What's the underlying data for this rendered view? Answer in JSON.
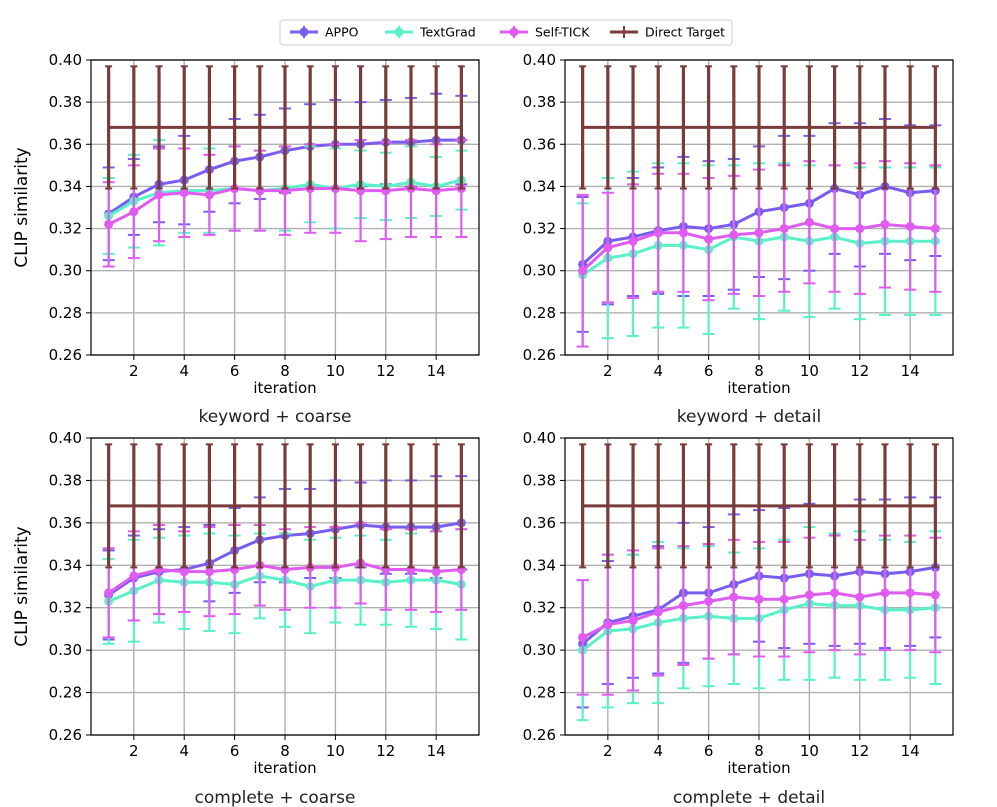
{
  "legend": [
    {
      "name": "APPO",
      "color": "#7b5cf0"
    },
    {
      "name": "TextGrad",
      "color": "#5af0c8"
    },
    {
      "name": "Self-TICK",
      "color": "#e05cf0"
    },
    {
      "name": "Direct Target",
      "color": "#7a3b3b"
    }
  ],
  "chart_data": [
    {
      "type": "line",
      "title": "keyword + coarse",
      "xlabel": "iteration",
      "ylabel": "CLIP similarity",
      "xlim": [
        0.3,
        15.7
      ],
      "ylim": [
        0.26,
        0.4
      ],
      "xticks": [
        2,
        4,
        6,
        8,
        10,
        12,
        14
      ],
      "yticks": [
        "0.26",
        "0.28",
        "0.30",
        "0.32",
        "0.34",
        "0.36",
        "0.38",
        "0.40"
      ],
      "x": [
        1,
        2,
        3,
        4,
        5,
        6,
        7,
        8,
        9,
        10,
        11,
        12,
        13,
        14,
        15
      ],
      "series": [
        {
          "name": "APPO",
          "color": "#7b5cf0",
          "values": [
            0.327,
            0.335,
            0.341,
            0.343,
            0.348,
            0.352,
            0.354,
            0.357,
            0.359,
            0.36,
            0.36,
            0.361,
            0.361,
            0.362,
            0.362
          ],
          "err": [
            0.022,
            0.018,
            0.018,
            0.021,
            0.02,
            0.02,
            0.02,
            0.02,
            0.02,
            0.021,
            0.02,
            0.02,
            0.021,
            0.022,
            0.021
          ]
        },
        {
          "name": "TextGrad",
          "color": "#5af0c8",
          "values": [
            0.326,
            0.333,
            0.337,
            0.338,
            0.338,
            0.339,
            0.338,
            0.339,
            0.341,
            0.339,
            0.341,
            0.34,
            0.342,
            0.34,
            0.343
          ],
          "err": [
            0.018,
            0.022,
            0.025,
            0.02,
            0.02,
            0.02,
            0.019,
            0.02,
            0.018,
            0.019,
            0.016,
            0.016,
            0.017,
            0.014,
            0.014
          ]
        },
        {
          "name": "Self-TICK",
          "color": "#e05cf0",
          "values": [
            0.322,
            0.328,
            0.336,
            0.337,
            0.336,
            0.339,
            0.338,
            0.338,
            0.339,
            0.339,
            0.338,
            0.338,
            0.339,
            0.338,
            0.339
          ],
          "err": [
            0.02,
            0.022,
            0.022,
            0.021,
            0.019,
            0.02,
            0.019,
            0.021,
            0.021,
            0.021,
            0.024,
            0.023,
            0.023,
            0.022,
            0.023
          ]
        },
        {
          "name": "Direct Target",
          "color": "#7a3b3b",
          "values": [
            0.368,
            0.368,
            0.368,
            0.368,
            0.368,
            0.368,
            0.368,
            0.368,
            0.368,
            0.368,
            0.368,
            0.368,
            0.368,
            0.368,
            0.368
          ],
          "err": [
            0.029,
            0.029,
            0.029,
            0.029,
            0.029,
            0.029,
            0.029,
            0.029,
            0.029,
            0.029,
            0.029,
            0.029,
            0.029,
            0.029,
            0.029
          ]
        }
      ]
    },
    {
      "type": "line",
      "title": "keyword + detail",
      "xlabel": "iteration",
      "ylabel": "",
      "xlim": [
        0.3,
        15.7
      ],
      "ylim": [
        0.26,
        0.4
      ],
      "xticks": [
        2,
        4,
        6,
        8,
        10,
        12,
        14
      ],
      "yticks": [
        "0.26",
        "0.28",
        "0.30",
        "0.32",
        "0.34",
        "0.36",
        "0.38",
        "0.40"
      ],
      "x": [
        1,
        2,
        3,
        4,
        5,
        6,
        7,
        8,
        9,
        10,
        11,
        12,
        13,
        14,
        15
      ],
      "series": [
        {
          "name": "APPO",
          "color": "#7b5cf0",
          "values": [
            0.303,
            0.314,
            0.316,
            0.319,
            0.321,
            0.32,
            0.322,
            0.328,
            0.33,
            0.332,
            0.339,
            0.336,
            0.34,
            0.337,
            0.338
          ],
          "err": [
            0.032,
            0.03,
            0.028,
            0.03,
            0.033,
            0.032,
            0.031,
            0.031,
            0.034,
            0.032,
            0.031,
            0.034,
            0.032,
            0.032,
            0.031
          ]
        },
        {
          "name": "TextGrad",
          "color": "#5af0c8",
          "values": [
            0.298,
            0.306,
            0.308,
            0.312,
            0.312,
            0.31,
            0.316,
            0.314,
            0.316,
            0.314,
            0.316,
            0.313,
            0.314,
            0.314,
            0.314
          ],
          "err": [
            0.034,
            0.038,
            0.039,
            0.039,
            0.039,
            0.04,
            0.034,
            0.037,
            0.035,
            0.036,
            0.034,
            0.036,
            0.035,
            0.035,
            0.035
          ]
        },
        {
          "name": "Self-TICK",
          "color": "#e05cf0",
          "values": [
            0.3,
            0.311,
            0.314,
            0.318,
            0.318,
            0.315,
            0.317,
            0.318,
            0.32,
            0.323,
            0.32,
            0.32,
            0.322,
            0.321,
            0.32
          ],
          "err": [
            0.036,
            0.026,
            0.027,
            0.028,
            0.028,
            0.029,
            0.028,
            0.03,
            0.03,
            0.029,
            0.03,
            0.031,
            0.03,
            0.03,
            0.03
          ]
        },
        {
          "name": "Direct Target",
          "color": "#7a3b3b",
          "values": [
            0.368,
            0.368,
            0.368,
            0.368,
            0.368,
            0.368,
            0.368,
            0.368,
            0.368,
            0.368,
            0.368,
            0.368,
            0.368,
            0.368,
            0.368
          ],
          "err": [
            0.029,
            0.029,
            0.029,
            0.029,
            0.029,
            0.029,
            0.029,
            0.029,
            0.029,
            0.029,
            0.029,
            0.029,
            0.029,
            0.029,
            0.029
          ]
        }
      ]
    },
    {
      "type": "line",
      "title": "complete + coarse",
      "xlabel": "iteration",
      "ylabel": "CLIP similarity",
      "xlim": [
        0.3,
        15.7
      ],
      "ylim": [
        0.26,
        0.4
      ],
      "xticks": [
        2,
        4,
        6,
        8,
        10,
        12,
        14
      ],
      "yticks": [
        "0.26",
        "0.28",
        "0.30",
        "0.32",
        "0.34",
        "0.36",
        "0.38",
        "0.40"
      ],
      "x": [
        1,
        2,
        3,
        4,
        5,
        6,
        7,
        8,
        9,
        10,
        11,
        12,
        13,
        14,
        15
      ],
      "series": [
        {
          "name": "APPO",
          "color": "#7b5cf0",
          "values": [
            0.326,
            0.334,
            0.337,
            0.338,
            0.341,
            0.347,
            0.352,
            0.354,
            0.355,
            0.357,
            0.359,
            0.358,
            0.358,
            0.358,
            0.36
          ],
          "err": [
            0.021,
            0.02,
            0.02,
            0.02,
            0.018,
            0.02,
            0.02,
            0.022,
            0.021,
            0.023,
            0.02,
            0.022,
            0.022,
            0.024,
            0.022
          ]
        },
        {
          "name": "TextGrad",
          "color": "#5af0c8",
          "values": [
            0.323,
            0.328,
            0.333,
            0.332,
            0.332,
            0.331,
            0.335,
            0.333,
            0.33,
            0.333,
            0.333,
            0.332,
            0.333,
            0.333,
            0.331
          ],
          "err": [
            0.02,
            0.024,
            0.02,
            0.022,
            0.023,
            0.023,
            0.02,
            0.022,
            0.022,
            0.02,
            0.021,
            0.02,
            0.022,
            0.023,
            0.026
          ]
        },
        {
          "name": "Self-TICK",
          "color": "#e05cf0",
          "values": [
            0.327,
            0.335,
            0.338,
            0.337,
            0.337,
            0.338,
            0.34,
            0.338,
            0.339,
            0.339,
            0.341,
            0.338,
            0.338,
            0.337,
            0.338
          ],
          "err": [
            0.021,
            0.021,
            0.021,
            0.019,
            0.021,
            0.021,
            0.019,
            0.019,
            0.019,
            0.019,
            0.019,
            0.019,
            0.019,
            0.019,
            0.019
          ]
        },
        {
          "name": "Direct Target",
          "color": "#7a3b3b",
          "values": [
            0.368,
            0.368,
            0.368,
            0.368,
            0.368,
            0.368,
            0.368,
            0.368,
            0.368,
            0.368,
            0.368,
            0.368,
            0.368,
            0.368,
            0.368
          ],
          "err": [
            0.029,
            0.029,
            0.029,
            0.029,
            0.029,
            0.029,
            0.029,
            0.029,
            0.029,
            0.029,
            0.029,
            0.029,
            0.029,
            0.029,
            0.029
          ]
        }
      ]
    },
    {
      "type": "line",
      "title": "complete + detail",
      "xlabel": "iteration",
      "ylabel": "",
      "xlim": [
        0.3,
        15.7
      ],
      "ylim": [
        0.26,
        0.4
      ],
      "xticks": [
        2,
        4,
        6,
        8,
        10,
        12,
        14
      ],
      "yticks": [
        "0.26",
        "0.28",
        "0.30",
        "0.32",
        "0.34",
        "0.36",
        "0.38",
        "0.40"
      ],
      "x": [
        1,
        2,
        3,
        4,
        5,
        6,
        7,
        8,
        9,
        10,
        11,
        12,
        13,
        14,
        15
      ],
      "series": [
        {
          "name": "APPO",
          "color": "#7b5cf0",
          "values": [
            0.303,
            0.313,
            0.316,
            0.319,
            0.327,
            0.327,
            0.331,
            0.335,
            0.334,
            0.336,
            0.335,
            0.337,
            0.336,
            0.337,
            0.339
          ],
          "err": [
            0.03,
            0.029,
            0.029,
            0.03,
            0.033,
            0.031,
            0.033,
            0.031,
            0.033,
            0.033,
            0.033,
            0.034,
            0.035,
            0.035,
            0.033
          ]
        },
        {
          "name": "TextGrad",
          "color": "#5af0c8",
          "values": [
            0.3,
            0.309,
            0.31,
            0.313,
            0.315,
            0.316,
            0.315,
            0.315,
            0.319,
            0.322,
            0.321,
            0.321,
            0.319,
            0.319,
            0.32
          ],
          "err": [
            0.033,
            0.036,
            0.035,
            0.038,
            0.033,
            0.033,
            0.031,
            0.033,
            0.033,
            0.036,
            0.034,
            0.035,
            0.033,
            0.032,
            0.036
          ]
        },
        {
          "name": "Self-TICK",
          "color": "#e05cf0",
          "values": [
            0.306,
            0.312,
            0.314,
            0.318,
            0.321,
            0.323,
            0.325,
            0.324,
            0.324,
            0.326,
            0.327,
            0.325,
            0.327,
            0.327,
            0.326
          ],
          "err": [
            0.027,
            0.033,
            0.033,
            0.03,
            0.028,
            0.027,
            0.027,
            0.027,
            0.027,
            0.027,
            0.027,
            0.027,
            0.027,
            0.027,
            0.027
          ]
        },
        {
          "name": "Direct Target",
          "color": "#7a3b3b",
          "values": [
            0.368,
            0.368,
            0.368,
            0.368,
            0.368,
            0.368,
            0.368,
            0.368,
            0.368,
            0.368,
            0.368,
            0.368,
            0.368,
            0.368,
            0.368
          ],
          "err": [
            0.029,
            0.029,
            0.029,
            0.029,
            0.029,
            0.029,
            0.029,
            0.029,
            0.029,
            0.029,
            0.029,
            0.029,
            0.029,
            0.029,
            0.029
          ]
        }
      ]
    }
  ]
}
